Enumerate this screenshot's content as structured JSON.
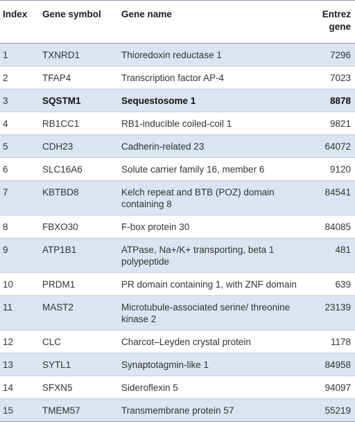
{
  "headers": {
    "index": "Index",
    "symbol": "Gene symbol",
    "name": "Gene name",
    "entrez": "Entrez gene"
  },
  "rows": [
    {
      "index": "1",
      "symbol": "TXNRD1",
      "name": "Thioredoxin reductase 1",
      "entrez": "7296"
    },
    {
      "index": "2",
      "symbol": "TFAP4",
      "name": "Transcription factor AP-4",
      "entrez": "7023"
    },
    {
      "index": "3",
      "symbol": "SQSTM1",
      "name": "Sequestosome 1",
      "entrez": "8878"
    },
    {
      "index": "4",
      "symbol": "RB1CC1",
      "name": "RB1-inducible coiled-coil 1",
      "entrez": "9821"
    },
    {
      "index": "5",
      "symbol": "CDH23",
      "name": "Cadherin-related 23",
      "entrez": "64072"
    },
    {
      "index": "6",
      "symbol": "SLC16A6",
      "name": "Solute carrier family 16, member 6",
      "entrez": "9120"
    },
    {
      "index": "7",
      "symbol": "KBTBD8",
      "name": "Kelch repeat and BTB (POZ) domain containing 8",
      "entrez": "84541"
    },
    {
      "index": "8",
      "symbol": "FBXO30",
      "name": "F-box protein 30",
      "entrez": "84085"
    },
    {
      "index": "9",
      "symbol": "ATP1B1",
      "name": "ATPase, Na+/K+ transporting, beta 1 polypeptide",
      "entrez": "481"
    },
    {
      "index": "10",
      "symbol": "PRDM1",
      "name": "PR domain containing 1, with ZNF domain",
      "entrez": "639"
    },
    {
      "index": "11",
      "symbol": "MAST2",
      "name": "Microtubule-associated serine/ threonine kinase 2",
      "entrez": "23139"
    },
    {
      "index": "12",
      "symbol": "CLC",
      "name": "Charcot–Leyden crystal protein",
      "entrez": "1178"
    },
    {
      "index": "13",
      "symbol": "SYTL1",
      "name": "Synaptotagmin-like 1",
      "entrez": "84958"
    },
    {
      "index": "14",
      "symbol": "SFXN5",
      "name": "Sideroflexin 5",
      "entrez": "94097"
    },
    {
      "index": "15",
      "symbol": "TMEM57",
      "name": "Transmembrane protein 57",
      "entrez": "55219"
    }
  ]
}
